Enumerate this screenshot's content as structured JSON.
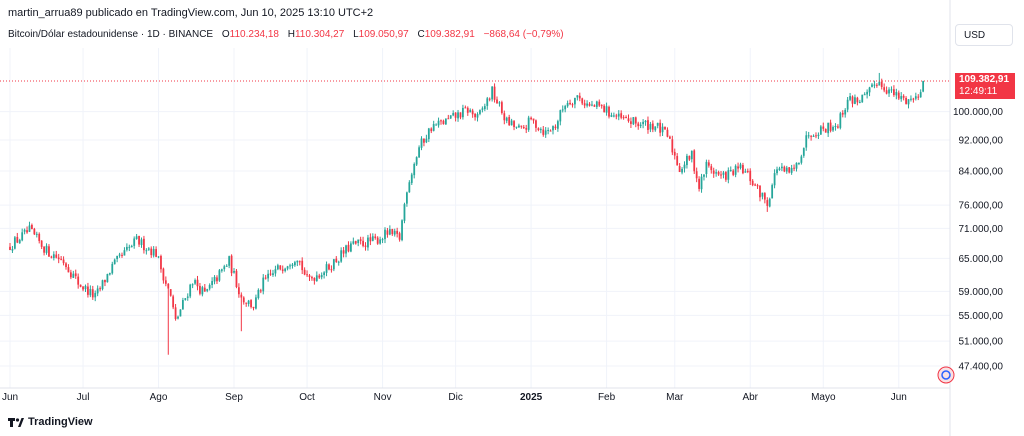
{
  "header": {
    "publisher": "martin_arrua89 publicado en TradingView.com, Jun 10, 2025 13:10 UTC+2"
  },
  "legend": {
    "symbol": "Bitcoin/Dólar estadounidense · 1D · BINANCE",
    "open_label": "O",
    "open": "110.234,18",
    "high_label": "H",
    "high": "110.304,27",
    "low_label": "L",
    "low": "109.050,97",
    "close_label": "C",
    "close": "109.382,91",
    "change": "−868,64 (−0,79%)"
  },
  "currency_button": "USD",
  "price_label": {
    "price": "109.382,91",
    "countdown": "12:49:11"
  },
  "brand": {
    "name": "TradingView"
  },
  "colors": {
    "up": "#26a69a",
    "down": "#f23645",
    "grid": "#f0f3fa",
    "axis_text": "#131722"
  },
  "chart_data": {
    "type": "candlestick",
    "title": "Bitcoin/Dólar estadounidense · 1D · BINANCE",
    "y_scale": "log",
    "ylim": [
      45500,
      120500
    ],
    "y_ticks": [
      47400,
      51000,
      55000,
      59000,
      65000,
      71000,
      76000,
      84000,
      92000,
      100000
    ],
    "y_tick_labels": [
      "47.400,00",
      "51.000,00",
      "55.000,00",
      "59.000,00",
      "65.000,00",
      "71.000,00",
      "76.000,00",
      "84.000,00",
      "92.000,00",
      "100.000,00"
    ],
    "x_label_ticks": [
      {
        "label": "Jun",
        "day": 0
      },
      {
        "label": "Jul",
        "day": 30
      },
      {
        "label": "Ago",
        "day": 61
      },
      {
        "label": "Sep",
        "day": 92
      },
      {
        "label": "Oct",
        "day": 122
      },
      {
        "label": "Nov",
        "day": 153
      },
      {
        "label": "Dic",
        "day": 183
      },
      {
        "label": "2025",
        "day": 214
      },
      {
        "label": "Feb",
        "day": 245
      },
      {
        "label": "Mar",
        "day": 273
      },
      {
        "label": "Abr",
        "day": 304
      },
      {
        "label": "Mayo",
        "day": 334
      },
      {
        "label": "Jun",
        "day": 365
      }
    ],
    "last_price": 109382.91,
    "close_keypoints": [
      [
        0,
        67500
      ],
      [
        8,
        70500
      ],
      [
        15,
        66500
      ],
      [
        22,
        64500
      ],
      [
        28,
        60500
      ],
      [
        35,
        58000
      ],
      [
        42,
        63500
      ],
      [
        52,
        68500
      ],
      [
        60,
        66000
      ],
      [
        66,
        58000
      ],
      [
        68,
        54000
      ],
      [
        75,
        61000
      ],
      [
        80,
        58500
      ],
      [
        90,
        64500
      ],
      [
        95,
        58000
      ],
      [
        100,
        56500
      ],
      [
        104,
        60500
      ],
      [
        110,
        63000
      ],
      [
        118,
        65500
      ],
      [
        122,
        61000
      ],
      [
        130,
        63000
      ],
      [
        140,
        67500
      ],
      [
        150,
        68500
      ],
      [
        155,
        70000
      ],
      [
        160,
        69000
      ],
      [
        163,
        80000
      ],
      [
        168,
        90000
      ],
      [
        173,
        95500
      ],
      [
        180,
        97500
      ],
      [
        188,
        100500
      ],
      [
        192,
        98000
      ],
      [
        198,
        106000
      ],
      [
        204,
        97000
      ],
      [
        210,
        94500
      ],
      [
        214,
        97500
      ],
      [
        220,
        94000
      ],
      [
        224,
        96000
      ],
      [
        228,
        102500
      ],
      [
        233,
        104500
      ],
      [
        238,
        101500
      ],
      [
        242,
        101500
      ],
      [
        250,
        98000
      ],
      [
        258,
        96500
      ],
      [
        265,
        96000
      ],
      [
        270,
        93000
      ],
      [
        275,
        84500
      ],
      [
        280,
        88000
      ],
      [
        283,
        80000
      ],
      [
        286,
        85500
      ],
      [
        292,
        82500
      ],
      [
        300,
        84500
      ],
      [
        303,
        83000
      ],
      [
        307,
        79500
      ],
      [
        311,
        76500
      ],
      [
        315,
        85000
      ],
      [
        318,
        83500
      ],
      [
        322,
        84000
      ],
      [
        328,
        94000
      ],
      [
        333,
        95000
      ],
      [
        340,
        96500
      ],
      [
        344,
        103500
      ],
      [
        348,
        103500
      ],
      [
        352,
        104500
      ],
      [
        356,
        109500
      ],
      [
        360,
        107000
      ],
      [
        364,
        104500
      ],
      [
        368,
        103500
      ],
      [
        372,
        104000
      ],
      [
        375,
        109382.91
      ]
    ],
    "spikes": [
      {
        "day": 65,
        "low": 49000
      },
      {
        "day": 95,
        "low": 52500
      },
      {
        "day": 311,
        "low": 74500
      },
      {
        "day": 357,
        "high": 112000
      }
    ]
  }
}
